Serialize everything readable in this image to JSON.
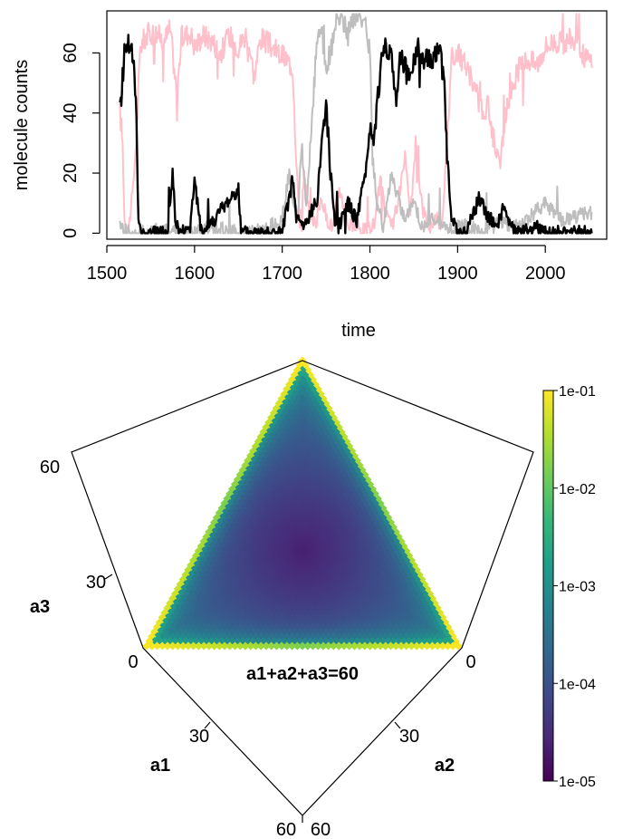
{
  "chart_data": [
    {
      "type": "line",
      "xlabel": "time",
      "ylabel": "molecule counts",
      "xlim": [
        1500,
        2070
      ],
      "ylim": [
        -2,
        74
      ],
      "x_ticks": [
        1500,
        1600,
        1700,
        1800,
        1900,
        2000
      ],
      "y_ticks": [
        0,
        20,
        40,
        60
      ],
      "series": [
        {
          "color": "#FFC0CB",
          "points": [
            [
              1515,
              40
            ],
            [
              1518,
              30
            ],
            [
              1520,
              5
            ],
            [
              1525,
              2
            ],
            [
              1530,
              15
            ],
            [
              1535,
              40
            ],
            [
              1538,
              62
            ],
            [
              1545,
              66
            ],
            [
              1555,
              67
            ],
            [
              1565,
              64
            ],
            [
              1572,
              68
            ],
            [
              1580,
              46
            ],
            [
              1585,
              65
            ],
            [
              1595,
              67
            ],
            [
              1600,
              62
            ],
            [
              1610,
              66
            ],
            [
              1620,
              64
            ],
            [
              1630,
              60
            ],
            [
              1640,
              66
            ],
            [
              1650,
              62
            ],
            [
              1660,
              67
            ],
            [
              1668,
              52
            ],
            [
              1675,
              65
            ],
            [
              1685,
              63
            ],
            [
              1695,
              60
            ],
            [
              1705,
              58
            ],
            [
              1712,
              55
            ],
            [
              1716,
              25
            ],
            [
              1720,
              2
            ],
            [
              1725,
              20
            ],
            [
              1730,
              8
            ],
            [
              1738,
              3
            ],
            [
              1745,
              12
            ],
            [
              1750,
              5
            ],
            [
              1758,
              2
            ],
            [
              1765,
              15
            ],
            [
              1775,
              3
            ],
            [
              1785,
              2
            ],
            [
              1795,
              1
            ],
            [
              1805,
              3
            ],
            [
              1812,
              18
            ],
            [
              1818,
              6
            ],
            [
              1825,
              2
            ],
            [
              1832,
              10
            ],
            [
              1840,
              25
            ],
            [
              1846,
              5
            ],
            [
              1852,
              30
            ],
            [
              1860,
              8
            ],
            [
              1868,
              2
            ],
            [
              1875,
              5
            ],
            [
              1882,
              3
            ],
            [
              1888,
              30
            ],
            [
              1893,
              60
            ],
            [
              1900,
              60
            ],
            [
              1910,
              55
            ],
            [
              1920,
              48
            ],
            [
              1928,
              40
            ],
            [
              1935,
              42
            ],
            [
              1942,
              30
            ],
            [
              1948,
              22
            ],
            [
              1955,
              40
            ],
            [
              1962,
              48
            ],
            [
              1970,
              55
            ],
            [
              1980,
              58
            ],
            [
              1990,
              56
            ],
            [
              2000,
              62
            ],
            [
              2010,
              64
            ],
            [
              2020,
              63
            ],
            [
              2030,
              65
            ],
            [
              2040,
              60
            ],
            [
              2050,
              58
            ],
            [
              2053,
              55
            ]
          ]
        },
        {
          "color": "#BEBEBE",
          "points": [
            [
              1515,
              2
            ],
            [
              1530,
              0
            ],
            [
              1560,
              1
            ],
            [
              1590,
              0
            ],
            [
              1620,
              2
            ],
            [
              1650,
              0
            ],
            [
              1680,
              1
            ],
            [
              1700,
              5
            ],
            [
              1708,
              20
            ],
            [
              1712,
              10
            ],
            [
              1718,
              5
            ],
            [
              1722,
              30
            ],
            [
              1728,
              8
            ],
            [
              1734,
              40
            ],
            [
              1740,
              65
            ],
            [
              1745,
              68
            ],
            [
              1750,
              55
            ],
            [
              1755,
              60
            ],
            [
              1760,
              68
            ],
            [
              1765,
              72
            ],
            [
              1770,
              70
            ],
            [
              1775,
              66
            ],
            [
              1780,
              72
            ],
            [
              1785,
              73
            ],
            [
              1790,
              72
            ],
            [
              1795,
              70
            ],
            [
              1800,
              60
            ],
            [
              1803,
              25
            ],
            [
              1808,
              10
            ],
            [
              1815,
              2
            ],
            [
              1825,
              20
            ],
            [
              1832,
              12
            ],
            [
              1840,
              5
            ],
            [
              1850,
              10
            ],
            [
              1860,
              2
            ],
            [
              1875,
              5
            ],
            [
              1890,
              1
            ],
            [
              1910,
              3
            ],
            [
              1925,
              0
            ],
            [
              1945,
              4
            ],
            [
              1970,
              2
            ],
            [
              2000,
              10
            ],
            [
              2020,
              4
            ],
            [
              2040,
              6
            ],
            [
              2053,
              7
            ]
          ]
        },
        {
          "color": "#000000",
          "points": [
            [
              1515,
              40
            ],
            [
              1518,
              52
            ],
            [
              1520,
              60
            ],
            [
              1523,
              65
            ],
            [
              1526,
              62
            ],
            [
              1530,
              58
            ],
            [
              1533,
              45
            ],
            [
              1536,
              5
            ],
            [
              1540,
              0
            ],
            [
              1570,
              0
            ],
            [
              1575,
              20
            ],
            [
              1578,
              5
            ],
            [
              1582,
              0
            ],
            [
              1595,
              2
            ],
            [
              1600,
              18
            ],
            [
              1605,
              5
            ],
            [
              1610,
              0
            ],
            [
              1650,
              15
            ],
            [
              1653,
              0
            ],
            [
              1700,
              0
            ],
            [
              1712,
              18
            ],
            [
              1716,
              5
            ],
            [
              1725,
              2
            ],
            [
              1735,
              8
            ],
            [
              1740,
              12
            ],
            [
              1745,
              30
            ],
            [
              1750,
              44
            ],
            [
              1755,
              20
            ],
            [
              1760,
              5
            ],
            [
              1765,
              3
            ],
            [
              1775,
              10
            ],
            [
              1785,
              4
            ],
            [
              1795,
              20
            ],
            [
              1800,
              35
            ],
            [
              1805,
              32
            ],
            [
              1810,
              48
            ],
            [
              1815,
              60
            ],
            [
              1820,
              62
            ],
            [
              1825,
              58
            ],
            [
              1830,
              45
            ],
            [
              1835,
              60
            ],
            [
              1840,
              55
            ],
            [
              1845,
              50
            ],
            [
              1850,
              58
            ],
            [
              1855,
              62
            ],
            [
              1860,
              58
            ],
            [
              1865,
              60
            ],
            [
              1870,
              55
            ],
            [
              1875,
              61
            ],
            [
              1880,
              60
            ],
            [
              1885,
              50
            ],
            [
              1888,
              25
            ],
            [
              1893,
              5
            ],
            [
              1900,
              0
            ],
            [
              1910,
              0
            ],
            [
              1925,
              12
            ],
            [
              1935,
              5
            ],
            [
              1945,
              3
            ],
            [
              1952,
              8
            ],
            [
              1960,
              2
            ],
            [
              1970,
              0
            ],
            [
              1990,
              2
            ],
            [
              2000,
              0
            ],
            [
              2053,
              0
            ]
          ]
        }
      ]
    },
    {
      "type": "heatmap",
      "subtype": "ternary",
      "title": "a1+a2+a3=60",
      "axes": [
        {
          "name": "a3",
          "ticks": [
            "0",
            "30",
            "60"
          ]
        },
        {
          "name": "a1",
          "ticks": [
            "30",
            "60"
          ]
        },
        {
          "name": "a2",
          "ticks": [
            "0",
            "30",
            "60"
          ]
        }
      ],
      "colorbar": {
        "scale": "log",
        "range": [
          1e-05,
          0.1
        ],
        "ticks": [
          "1e-01",
          "1e-02",
          "1e-03",
          "1e-04",
          "1e-05"
        ],
        "tick_values": [
          0.1,
          0.01,
          0.001,
          0.0001,
          1e-05
        ],
        "colors": [
          "#440154",
          "#482878",
          "#3E4A89",
          "#31688E",
          "#26828E",
          "#1F9E89",
          "#35B779",
          "#6DCD59",
          "#B4DE2C",
          "#FDE725"
        ]
      }
    }
  ]
}
